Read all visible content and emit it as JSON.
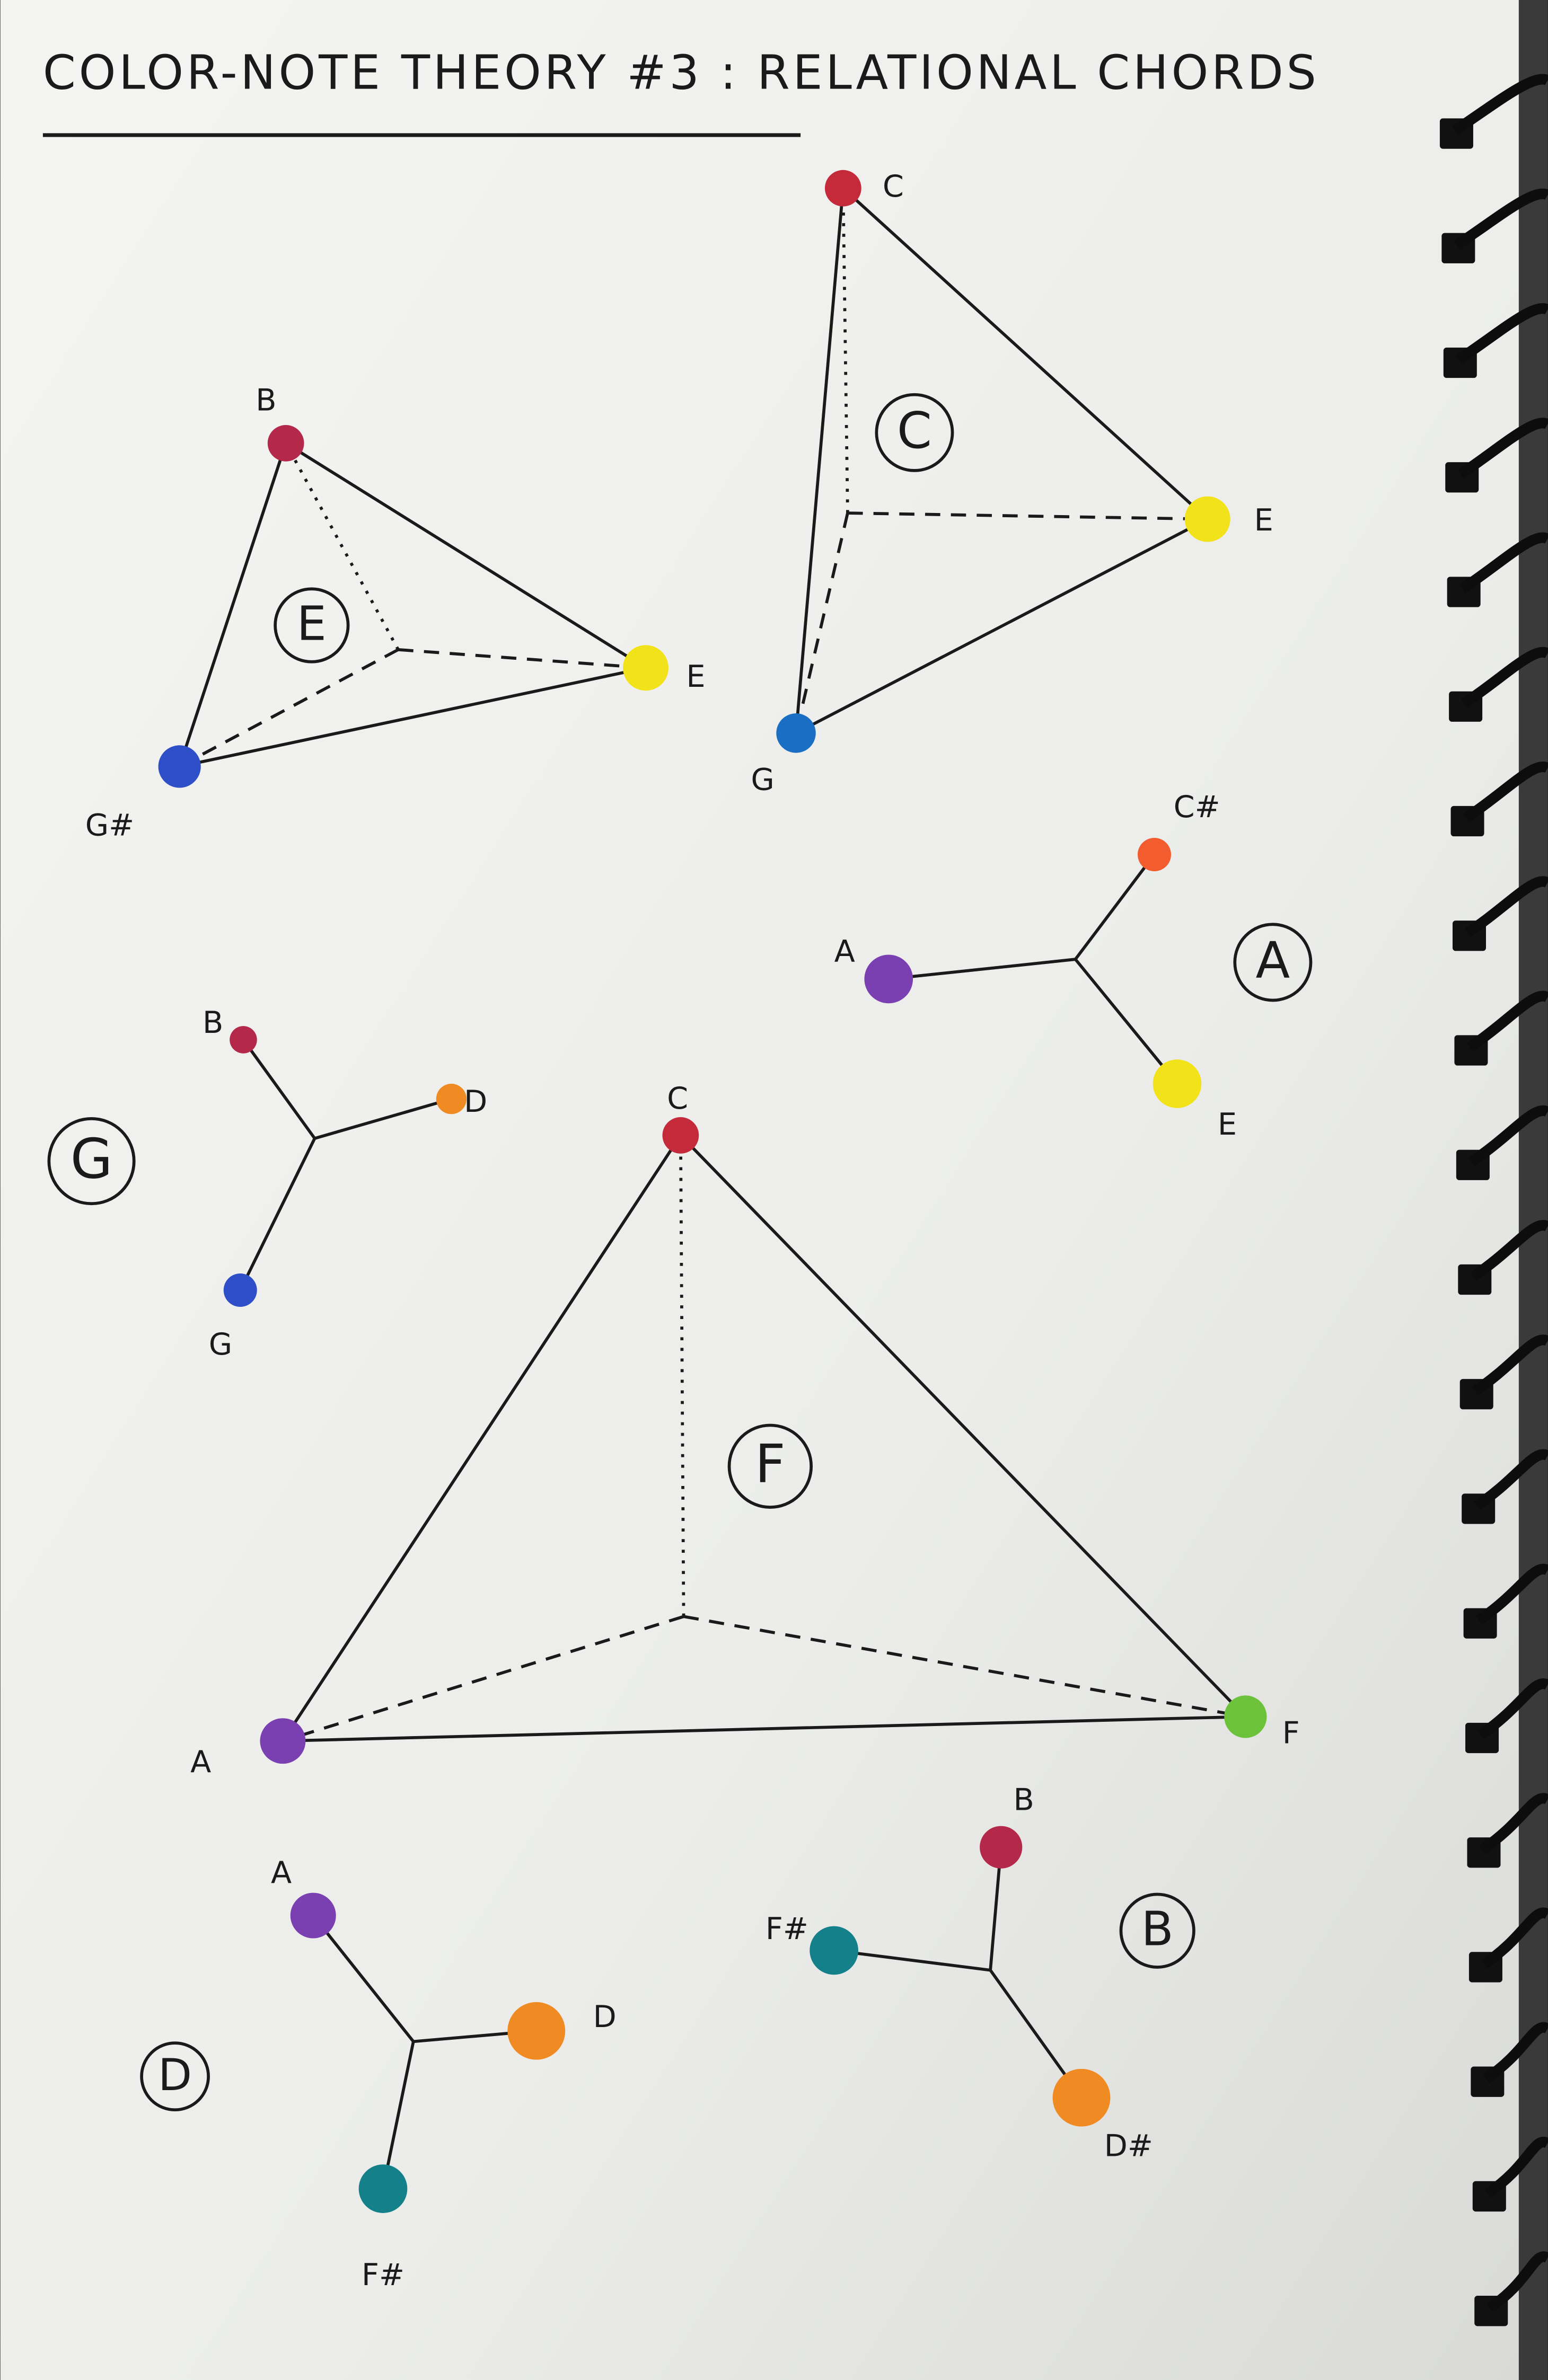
{
  "title": "COLOR-NOTE THEORY #3 : RELATIONAL CHORDS",
  "chords": [
    {
      "label": "E",
      "notes": [
        "B",
        "E",
        "G#"
      ]
    },
    {
      "label": "C",
      "notes": [
        "C",
        "E",
        "G"
      ]
    },
    {
      "label": "A",
      "notes": [
        "A",
        "C#",
        "E"
      ]
    },
    {
      "label": "G",
      "notes": [
        "B",
        "D",
        "G"
      ]
    },
    {
      "label": "F",
      "notes": [
        "C",
        "A",
        "F"
      ]
    },
    {
      "label": "D",
      "notes": [
        "A",
        "D",
        "F#"
      ]
    },
    {
      "label": "B",
      "notes": [
        "B",
        "F#",
        "D#"
      ]
    }
  ]
}
